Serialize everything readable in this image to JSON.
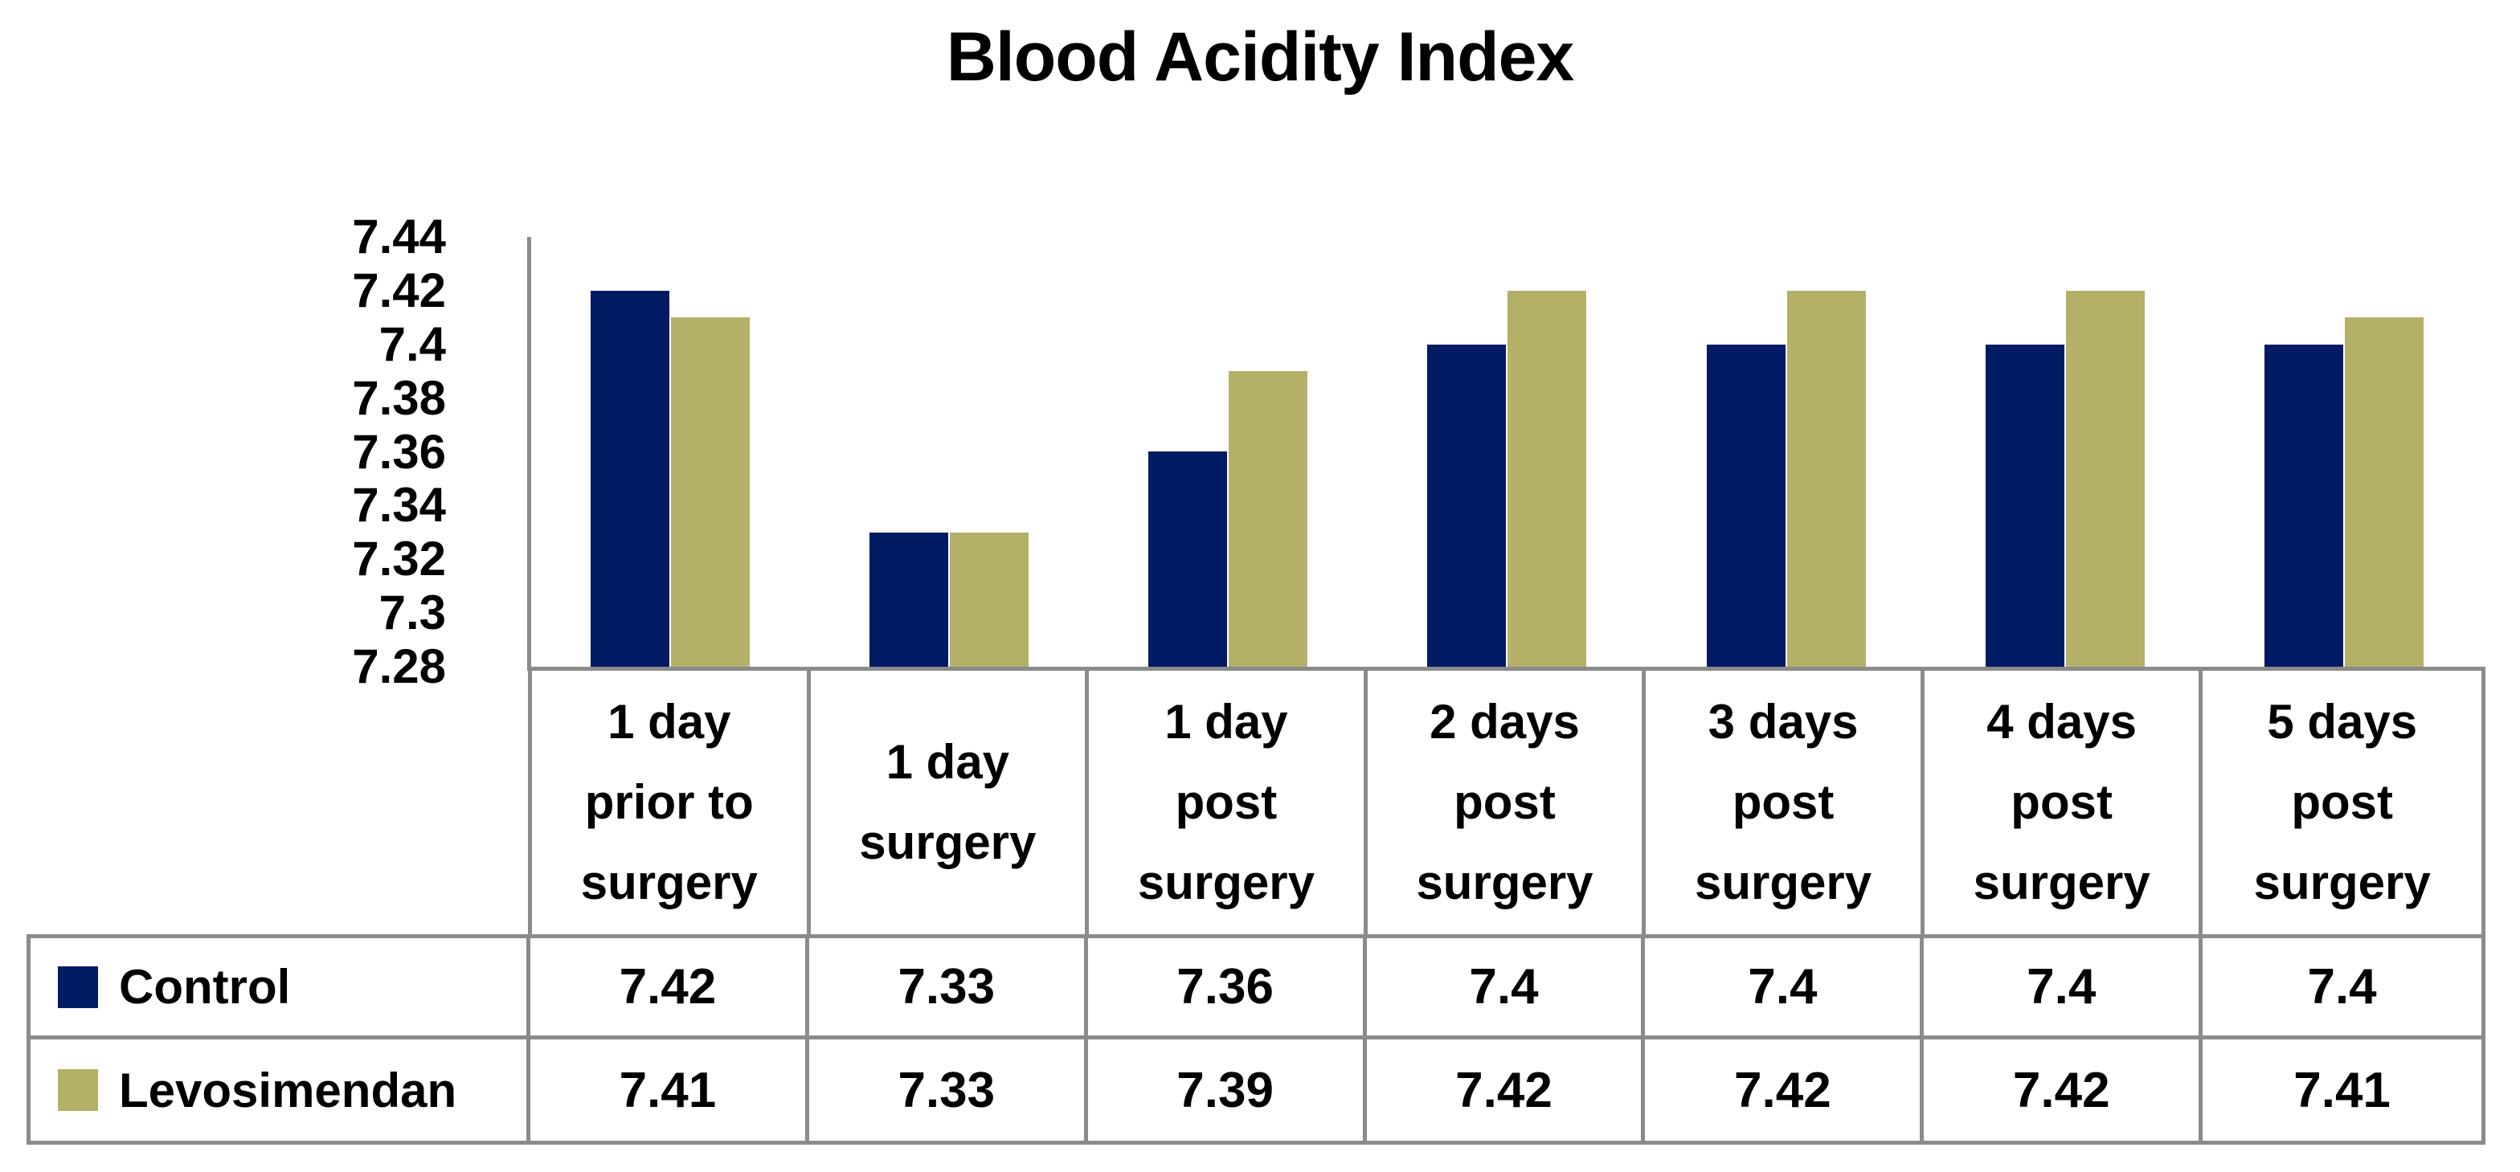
{
  "chart_data": {
    "type": "bar",
    "title": "Blood Acidity Index",
    "categories": [
      "1 day prior to surgery",
      "1 day surgery",
      "1 day post surgery",
      "2 days post surgery",
      "3 days post surgery",
      "4 days post surgery",
      "5 days post surgery"
    ],
    "categories_lines": [
      [
        "1 day",
        "prior to",
        "surgery"
      ],
      [
        "1 day",
        "surgery"
      ],
      [
        "1 day",
        "post",
        "surgery"
      ],
      [
        "2 days",
        "post",
        "surgery"
      ],
      [
        "3 days",
        "post",
        "surgery"
      ],
      [
        "4 days",
        "post",
        "surgery"
      ],
      [
        "5 days",
        "post",
        "surgery"
      ]
    ],
    "series": [
      {
        "name": "Control",
        "color": "#001A63",
        "values": [
          7.42,
          7.33,
          7.36,
          7.4,
          7.4,
          7.4,
          7.4
        ]
      },
      {
        "name": "Levosimendan",
        "color": "#B5B068",
        "values": [
          7.41,
          7.33,
          7.39,
          7.42,
          7.42,
          7.42,
          7.41
        ]
      }
    ],
    "ylim": [
      7.28,
      7.44
    ],
    "ytick_labels": [
      "7.44",
      "7.42",
      "7.4",
      "7.38",
      "7.36",
      "7.34",
      "7.32",
      "7.3",
      "7.28"
    ],
    "grid": false,
    "legend_position": "table-left",
    "axis_color": "#8B8B8B",
    "text_color": "#000000",
    "background_color": "#FFFFFF"
  }
}
